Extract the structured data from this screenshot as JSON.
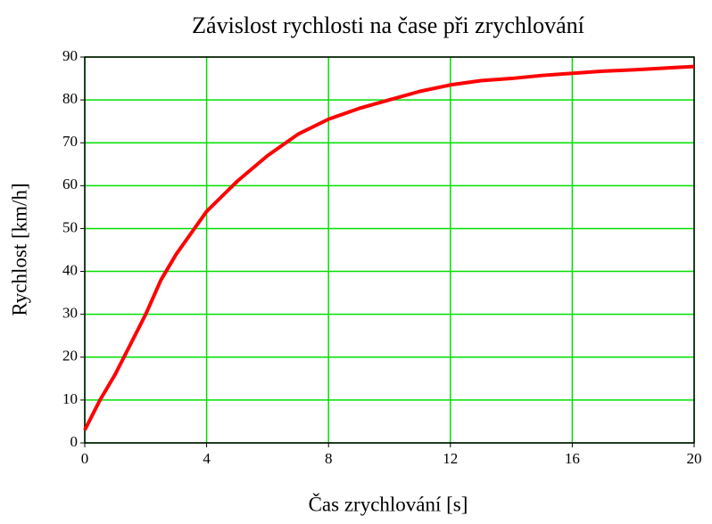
{
  "chart_data": {
    "type": "line",
    "title": "Závislost rychlosti na čase při zrychlování",
    "x_label": "Čas zrychlování [s]",
    "y_label": "Rychlost [km/h]",
    "x": [
      0,
      0.5,
      1,
      1.5,
      2,
      2.5,
      3,
      3.5,
      4,
      5,
      6,
      7,
      8,
      9,
      10,
      11,
      12,
      13,
      14,
      15,
      16,
      17,
      18,
      19,
      20
    ],
    "series": [
      {
        "color": "#ff0000",
        "values": [
          3,
          10,
          16,
          23,
          30,
          38,
          44,
          49,
          54,
          61,
          67,
          72,
          75.5,
          78,
          80,
          82,
          83.5,
          84.5,
          85,
          85.7,
          86.2,
          86.7,
          87,
          87.4,
          87.8
        ]
      }
    ],
    "xlim": [
      0,
      20
    ],
    "xticks": [
      0,
      4,
      8,
      12,
      16,
      20
    ],
    "ylim": [
      0,
      90
    ],
    "yticks": [
      0,
      10,
      20,
      30,
      40,
      50,
      60,
      70,
      80,
      90
    ],
    "grid": true,
    "grid_color": "#00e000"
  }
}
